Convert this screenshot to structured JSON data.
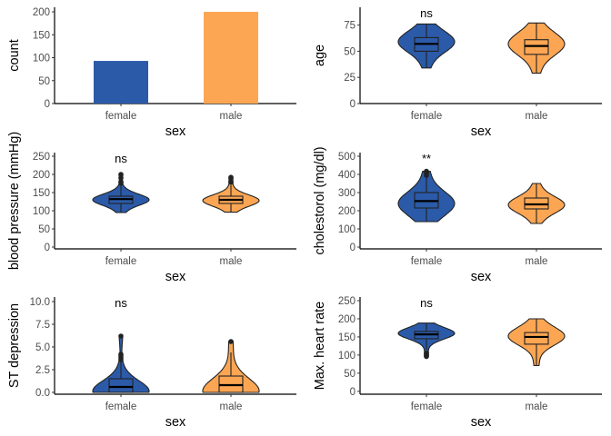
{
  "colors": {
    "female": "#2b5aa8",
    "male": "#fca653",
    "axis": "#000000",
    "text": "#4d4d4d"
  },
  "chart_data": [
    {
      "type": "bar",
      "panel": "top-left",
      "xlabel": "sex",
      "ylabel": "count",
      "categories": [
        "female",
        "male"
      ],
      "values": [
        93,
        200
      ],
      "ylim": [
        0,
        210
      ],
      "yticks": [
        "0",
        "50",
        "100",
        "150",
        "200"
      ],
      "grid": false
    },
    {
      "type": "violin",
      "panel": "top-right",
      "xlabel": "sex",
      "ylabel": "age",
      "categories": [
        "female",
        "male"
      ],
      "ylim": [
        0,
        92
      ],
      "yticks": [
        "0",
        "25",
        "50",
        "75"
      ],
      "significance": "ns",
      "stats": [
        {
          "group": "female",
          "min": 34,
          "q1": 50,
          "median": 57,
          "q3": 63,
          "max": 76,
          "mode": 59,
          "outliers": []
        },
        {
          "group": "male",
          "min": 29,
          "q1": 47,
          "median": 55,
          "q3": 61,
          "max": 77,
          "mode": 57,
          "outliers": []
        }
      ]
    },
    {
      "type": "violin",
      "panel": "middle-left",
      "xlabel": "sex",
      "ylabel": "blood pressure (mmHg)",
      "categories": [
        "female",
        "male"
      ],
      "ylim": [
        -5,
        260
      ],
      "yticks": [
        "0",
        "50",
        "100",
        "150",
        "200",
        "250"
      ],
      "significance": "ns",
      "stats": [
        {
          "group": "female",
          "min": 95,
          "q1": 120,
          "median": 132,
          "q3": 140,
          "max": 170,
          "mode": 130,
          "outliers": [
            176,
            180,
            190,
            200
          ]
        },
        {
          "group": "male",
          "min": 96,
          "q1": 120,
          "median": 130,
          "q3": 140,
          "max": 170,
          "mode": 128,
          "outliers": [
            178,
            180,
            192
          ]
        }
      ]
    },
    {
      "type": "violin",
      "panel": "middle-right",
      "xlabel": "sex",
      "ylabel": "cholestorol (mg/dl)",
      "categories": [
        "female",
        "male"
      ],
      "ylim": [
        -10,
        520
      ],
      "yticks": [
        "0",
        "100",
        "200",
        "300",
        "400",
        "500"
      ],
      "significance": "**",
      "stats": [
        {
          "group": "female",
          "min": 140,
          "q1": 215,
          "median": 253,
          "q3": 300,
          "max": 380,
          "mode": 240,
          "outliers": [
            394,
            407,
            409,
            417
          ]
        },
        {
          "group": "male",
          "min": 130,
          "q1": 210,
          "median": 235,
          "q3": 270,
          "max": 350,
          "mode": 232,
          "outliers": []
        }
      ]
    },
    {
      "type": "violin",
      "panel": "bottom-left",
      "xlabel": "sex",
      "ylabel": "ST depression",
      "categories": [
        "female",
        "male"
      ],
      "ylim": [
        -0.2,
        10.5
      ],
      "yticks": [
        "0.0",
        "2.5",
        "5.0",
        "7.5",
        "10.0"
      ],
      "significance": "ns",
      "stats": [
        {
          "group": "female",
          "min": 0,
          "q1": 0,
          "median": 0.6,
          "q3": 1.5,
          "max": 3.4,
          "mode": 0.1,
          "outliers": [
            3.6,
            3.8,
            4.0,
            4.2,
            6.2
          ]
        },
        {
          "group": "male",
          "min": 0,
          "q1": 0,
          "median": 0.8,
          "q3": 1.8,
          "max": 4.4,
          "mode": 0.1,
          "outliers": [
            5.6
          ]
        }
      ]
    },
    {
      "type": "violin",
      "panel": "bottom-right",
      "xlabel": "sex",
      "ylabel": "Max. heart rate",
      "categories": [
        "female",
        "male"
      ],
      "ylim": [
        -8,
        260
      ],
      "yticks": [
        "0",
        "50",
        "100",
        "150",
        "200",
        "250"
      ],
      "significance": "ns",
      "stats": [
        {
          "group": "female",
          "min": 114,
          "q1": 145,
          "median": 157,
          "q3": 165,
          "max": 188,
          "mode": 160,
          "outliers": [
            96,
            100,
            105
          ]
        },
        {
          "group": "male",
          "min": 71,
          "q1": 130,
          "median": 150,
          "q3": 162,
          "max": 200,
          "mode": 152,
          "outliers": []
        }
      ]
    }
  ]
}
